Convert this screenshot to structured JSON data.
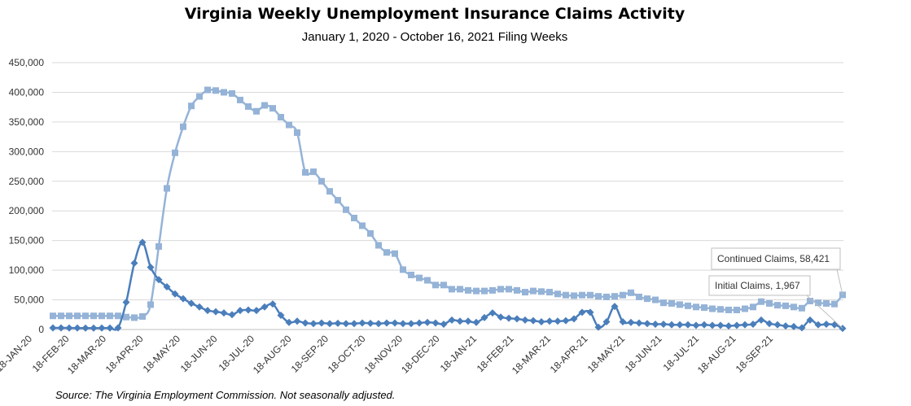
{
  "chart_data": {
    "type": "line",
    "title": "Virginia Weekly Unemployment Insurance Claims Activity",
    "subtitle": "January 1, 2020 - October 16, 2021 Filing Weeks",
    "source": "Source: The Virginia Employment Commission. Not seasonally adjusted.",
    "ylim": [
      0,
      450000
    ],
    "y_ticks": [
      0,
      50000,
      100000,
      150000,
      200000,
      250000,
      300000,
      350000,
      400000,
      450000
    ],
    "y_tick_labels": [
      "0",
      "50,000",
      "100,000",
      "150,000",
      "200,000",
      "250,000",
      "300,000",
      "350,000",
      "400,000",
      "450,000"
    ],
    "x_tick_labels": [
      "18-JAN-20",
      "18-FEB-20",
      "18-MAR-20",
      "18-APR-20",
      "18-MAY-20",
      "18-JUN-20",
      "18-JUL-20",
      "18-AUG-20",
      "18-SEP-20",
      "18-OCT-20",
      "18-NOV-20",
      "18-DEC-20",
      "18-JAN-21",
      "18-FEB-21",
      "18-MAR-21",
      "18-APR-21",
      "18-MAY-21",
      "18-JUN-21",
      "18-JUL-21",
      "18-AUG-21",
      "18-SEP-21"
    ],
    "grid": true,
    "series": [
      {
        "name": "Initial Claims",
        "color": "#4a7ebb",
        "marker": "diamond",
        "end_label": "Initial Claims, 1,967",
        "values": [
          2700,
          2800,
          2600,
          2500,
          2400,
          2400,
          2500,
          2600,
          2700,
          46000,
          112000,
          147000,
          105000,
          84000,
          72000,
          60000,
          52000,
          44000,
          38000,
          32000,
          30000,
          28000,
          25000,
          32000,
          33000,
          32000,
          38000,
          43000,
          24000,
          12000,
          14000,
          11000,
          10000,
          11000,
          10000,
          10500,
          10000,
          10000,
          11000,
          10500,
          10000,
          11000,
          11000,
          10000,
          10000,
          11000,
          12000,
          11000,
          9000,
          16000,
          14000,
          14000,
          12000,
          20000,
          28000,
          21000,
          19000,
          18000,
          16000,
          15000,
          13000,
          14000,
          14000,
          15000,
          18000,
          29000,
          29000,
          4000,
          13000,
          39000,
          13000,
          12000,
          11000,
          10000,
          9000,
          9000,
          8000,
          8000,
          8000,
          7000,
          8000,
          7000,
          7000,
          6000,
          7000,
          8000,
          9000,
          16000,
          10000,
          8000,
          6000,
          5000,
          3000,
          16000,
          8000,
          9000,
          8000,
          1967
        ]
      },
      {
        "name": "Continued Claims",
        "color": "#95b3d7",
        "marker": "square",
        "end_label": "Continued Claims, 58,421",
        "values": [
          23000,
          23000,
          23000,
          23000,
          23000,
          23000,
          23000,
          23000,
          23000,
          21000,
          20000,
          22000,
          42000,
          140000,
          238000,
          298000,
          342000,
          377000,
          393000,
          404000,
          403000,
          400000,
          398000,
          387000,
          376000,
          368000,
          378000,
          373000,
          358000,
          345000,
          332000,
          265000,
          266000,
          250000,
          233000,
          218000,
          202000,
          188000,
          175000,
          162000,
          142000,
          130000,
          128000,
          101000,
          92000,
          87000,
          83000,
          75000,
          75000,
          68000,
          68000,
          66000,
          65000,
          65000,
          66000,
          68000,
          68000,
          66000,
          63000,
          65000,
          64000,
          63000,
          60000,
          58000,
          57000,
          58000,
          58000,
          56000,
          55000,
          56000,
          58000,
          62000,
          55000,
          52000,
          50000,
          45000,
          44000,
          42000,
          40000,
          38000,
          37000,
          35000,
          34000,
          33000,
          33000,
          35000,
          38000,
          47000,
          44000,
          41000,
          40000,
          38000,
          36000,
          48000,
          45000,
          44000,
          43000,
          58421
        ]
      }
    ]
  }
}
